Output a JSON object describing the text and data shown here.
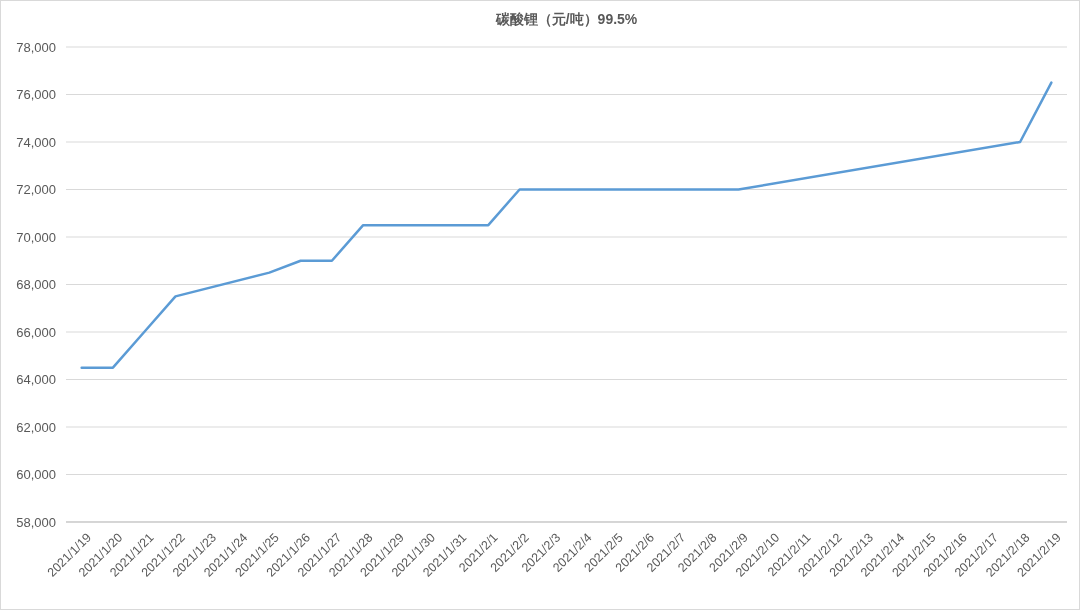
{
  "chart_data": {
    "type": "line",
    "title": "碳酸锂（元/吨）99.5%",
    "categories": [
      "2021/1/19",
      "2021/1/20",
      "2021/1/21",
      "2021/1/22",
      "2021/1/23",
      "2021/1/24",
      "2021/1/25",
      "2021/1/26",
      "2021/1/27",
      "2021/1/28",
      "2021/1/29",
      "2021/1/30",
      "2021/1/31",
      "2021/2/1",
      "2021/2/2",
      "2021/2/3",
      "2021/2/4",
      "2021/2/5",
      "2021/2/6",
      "2021/2/7",
      "2021/2/8",
      "2021/2/9",
      "2021/2/10",
      "2021/2/11",
      "2021/2/12",
      "2021/2/13",
      "2021/2/14",
      "2021/2/15",
      "2021/2/16",
      "2021/2/17",
      "2021/2/18",
      "2021/2/19"
    ],
    "series": [
      {
        "color": "#5b9bd5",
        "x": [
          "2021/1/19",
          "2021/1/20",
          "2021/1/21",
          "2021/1/22",
          "2021/1/25",
          "2021/1/26",
          "2021/1/27",
          "2021/1/28",
          "2021/1/29",
          "2021/2/1",
          "2021/2/2",
          "2021/2/3",
          "2021/2/4",
          "2021/2/5",
          "2021/2/8",
          "2021/2/9",
          "2021/2/18",
          "2021/2/19"
        ],
        "values": [
          64500,
          64500,
          66000,
          67500,
          68500,
          69000,
          69000,
          70500,
          70500,
          70500,
          72000,
          72000,
          72000,
          72000,
          72000,
          72000,
          74000,
          76500
        ]
      }
    ],
    "ylim": [
      58000,
      78000
    ],
    "yticks": [
      {
        "value": 58000,
        "label": "58,000"
      },
      {
        "value": 60000,
        "label": "60,000"
      },
      {
        "value": 62000,
        "label": "62,000"
      },
      {
        "value": 64000,
        "label": "64,000"
      },
      {
        "value": 66000,
        "label": "66,000"
      },
      {
        "value": 68000,
        "label": "68,000"
      },
      {
        "value": 70000,
        "label": "70,000"
      },
      {
        "value": 72000,
        "label": "72,000"
      },
      {
        "value": 74000,
        "label": "74,000"
      },
      {
        "value": 76000,
        "label": "76,000"
      },
      {
        "value": 78000,
        "label": "78,000"
      }
    ],
    "grid": "y"
  }
}
